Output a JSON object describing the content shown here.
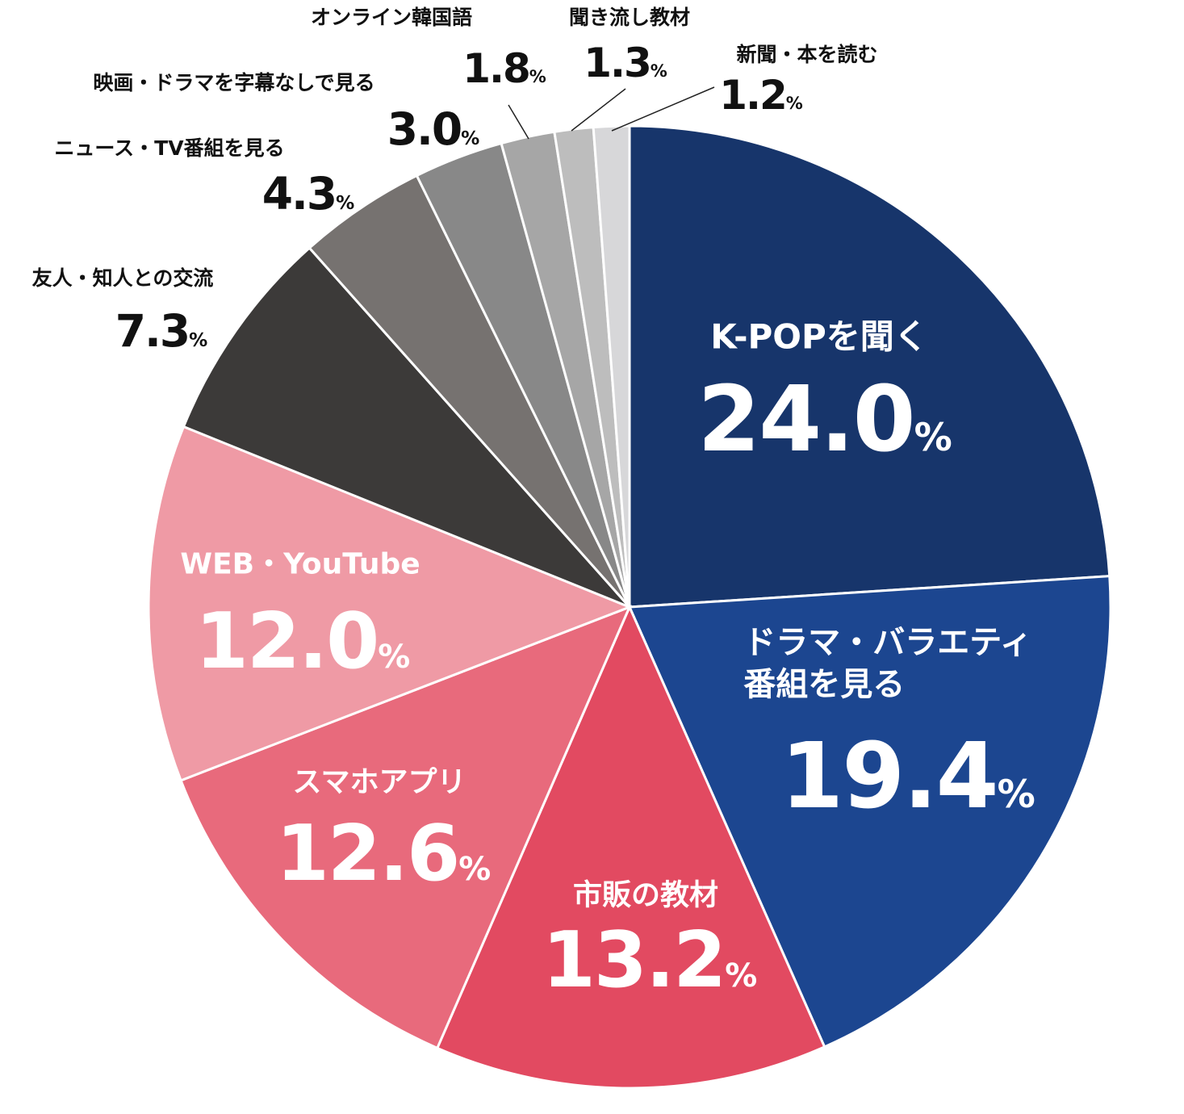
{
  "chart_data": {
    "type": "pie",
    "categories": [
      "K-POPを聞く",
      "ドラマ・バラエティ\n番組を見る",
      "市販の教材",
      "スマホアプリ",
      "WEB・YouTube",
      "友人・知人との交流",
      "ニュース・TV番組を見る",
      "映画・ドラマを字幕なしで見る",
      "オンライン韓国語",
      "聞き流し教材",
      "新聞・本を読む"
    ],
    "values": [
      24.0,
      19.4,
      13.2,
      12.6,
      12.0,
      7.3,
      4.3,
      3.0,
      1.8,
      1.3,
      1.2
    ],
    "value_labels": [
      "24.0",
      "19.4",
      "13.2",
      "12.6",
      "12.0",
      "7.3",
      "4.3",
      "3.0",
      "1.8",
      "1.3",
      "1.2"
    ],
    "unit": "%",
    "colors": [
      "#17356b",
      "#1c4690",
      "#e24a61",
      "#e86a7c",
      "#ef9aa5",
      "#3c3a39",
      "#767270",
      "#888888",
      "#a6a6a6",
      "#bdbdbd",
      "#d7d7d9"
    ]
  }
}
